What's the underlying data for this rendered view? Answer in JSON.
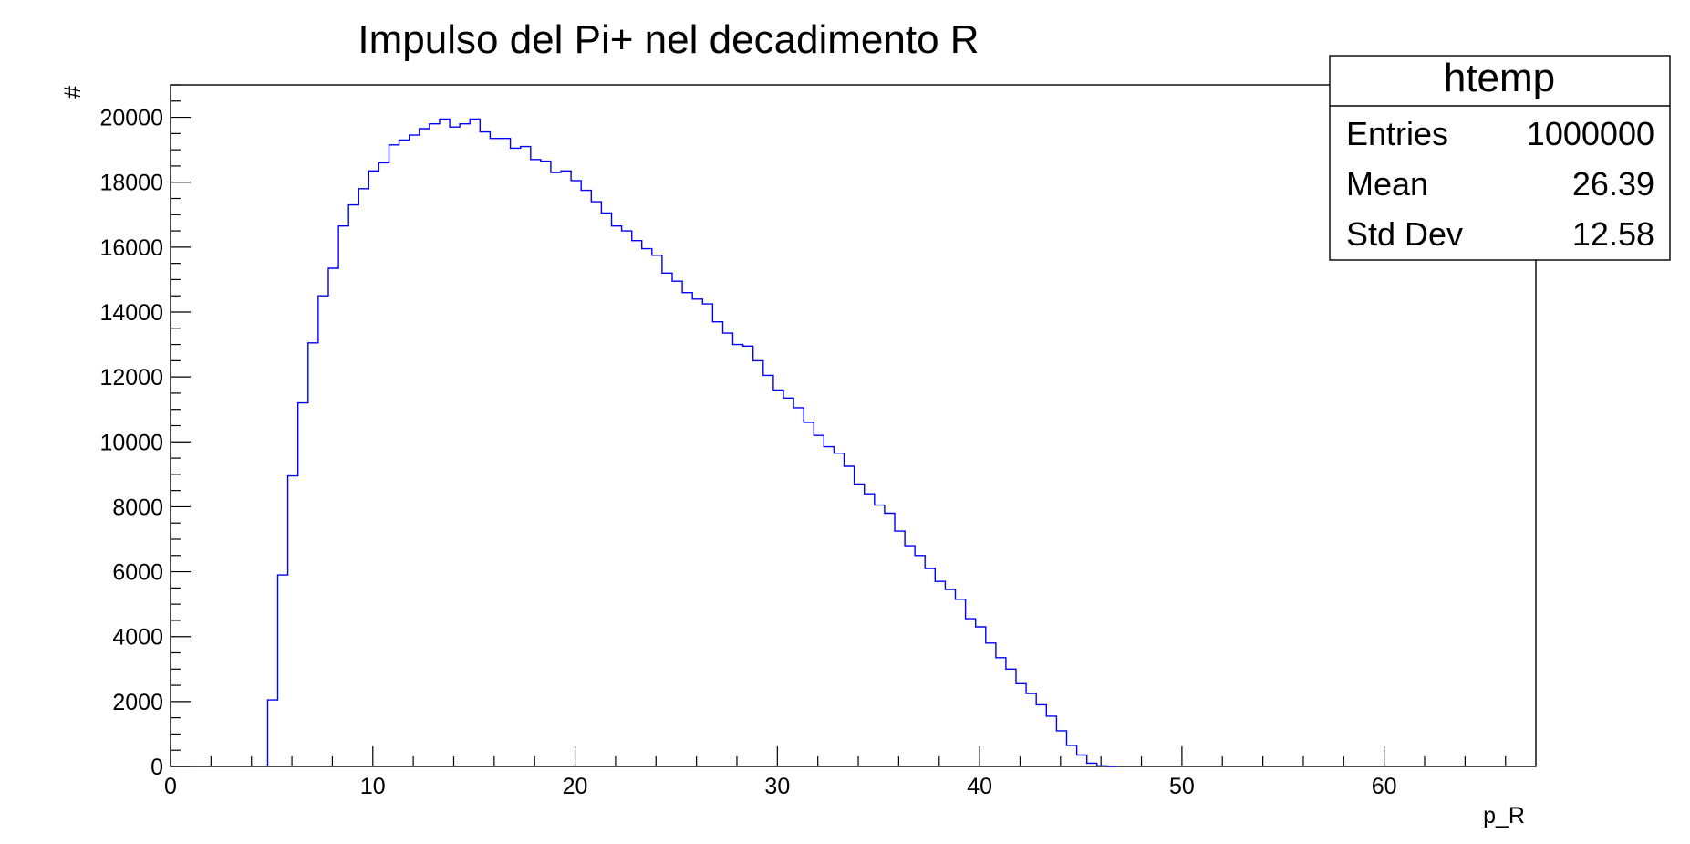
{
  "chart_data": {
    "type": "histogram",
    "title": "Impulso del Pi+ nel decadimento R",
    "xlabel": "p_R",
    "ylabel": "#",
    "xlim": [
      0,
      67.5
    ],
    "ylim": [
      0,
      21000
    ],
    "bin_width": 0.5,
    "x_tick_labels": [
      "0",
      "10",
      "20",
      "30",
      "40",
      "50",
      "60"
    ],
    "y_tick_labels": [
      "0",
      "2000",
      "4000",
      "6000",
      "8000",
      "10000",
      "12000",
      "14000",
      "16000",
      "18000",
      "20000"
    ],
    "line_color": "#0000ff",
    "bin_edges_start": 4.8,
    "values": [
      2050,
      5900,
      8950,
      11200,
      13050,
      14500,
      15350,
      16650,
      17300,
      17800,
      18350,
      18600,
      19150,
      19300,
      19450,
      19650,
      19800,
      19950,
      19700,
      19800,
      19950,
      19550,
      19350,
      19350,
      19050,
      19100,
      18700,
      18650,
      18300,
      18350,
      18050,
      17750,
      17400,
      17050,
      16650,
      16500,
      16200,
      15950,
      15750,
      15200,
      14950,
      14600,
      14400,
      14250,
      13700,
      13350,
      13000,
      12950,
      12500,
      12050,
      11600,
      11350,
      11050,
      10600,
      10200,
      9850,
      9650,
      9250,
      8700,
      8400,
      8050,
      7800,
      7250,
      6800,
      6500,
      6100,
      5700,
      5450,
      5150,
      4550,
      4300,
      3800,
      3350,
      3000,
      2550,
      2250,
      1900,
      1550,
      1100,
      650,
      350,
      100,
      20,
      0
    ],
    "legend": "top-right",
    "grid": false
  },
  "stats": {
    "title": "htemp",
    "rows": [
      {
        "label": "Entries",
        "value": "1000000"
      },
      {
        "label": "Mean",
        "value": "26.39"
      },
      {
        "label": "Std Dev",
        "value": "12.58"
      }
    ]
  }
}
